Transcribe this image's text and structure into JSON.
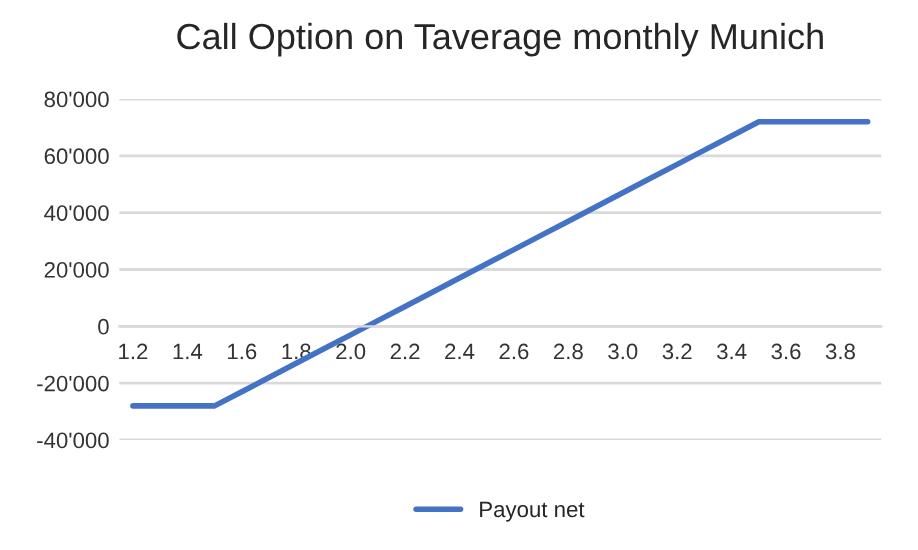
{
  "chart_data": {
    "type": "line",
    "title": "Call Option on Taverage monthly Munich",
    "categories": [
      "1.2",
      null,
      "1.4",
      null,
      "1.6",
      null,
      "1.8",
      null,
      "2.0",
      null,
      "2.2",
      null,
      "2.4",
      null,
      "2.6",
      null,
      "2.8",
      null,
      "3.0",
      null,
      "3.2",
      null,
      "3.4",
      null,
      "3.6",
      null,
      "3.8",
      null
    ],
    "series": [
      {
        "name": "Payout net",
        "color": "#4472c4",
        "values": [
          -28000,
          -28000,
          -28000,
          -28000,
          -23000,
          -18000,
          -13000,
          -8000,
          -3000,
          2000,
          7000,
          12000,
          17000,
          22000,
          27000,
          32000,
          37000,
          42000,
          47000,
          52000,
          57000,
          62000,
          67000,
          72000,
          72000,
          72000,
          72000,
          72000
        ]
      }
    ],
    "ylim": [
      -40000,
      80000
    ],
    "yticks": [
      {
        "value": -40000,
        "label": "-40'000"
      },
      {
        "value": -20000,
        "label": "-20'000"
      },
      {
        "value": 0,
        "label": "0"
      },
      {
        "value": 20000,
        "label": "20'000"
      },
      {
        "value": 40000,
        "label": "40'000"
      },
      {
        "value": 60000,
        "label": "60'000"
      },
      {
        "value": 80000,
        "label": "80'000"
      }
    ],
    "grid": "y",
    "legend": "bottom",
    "marker": "none",
    "line_style": "solid"
  }
}
